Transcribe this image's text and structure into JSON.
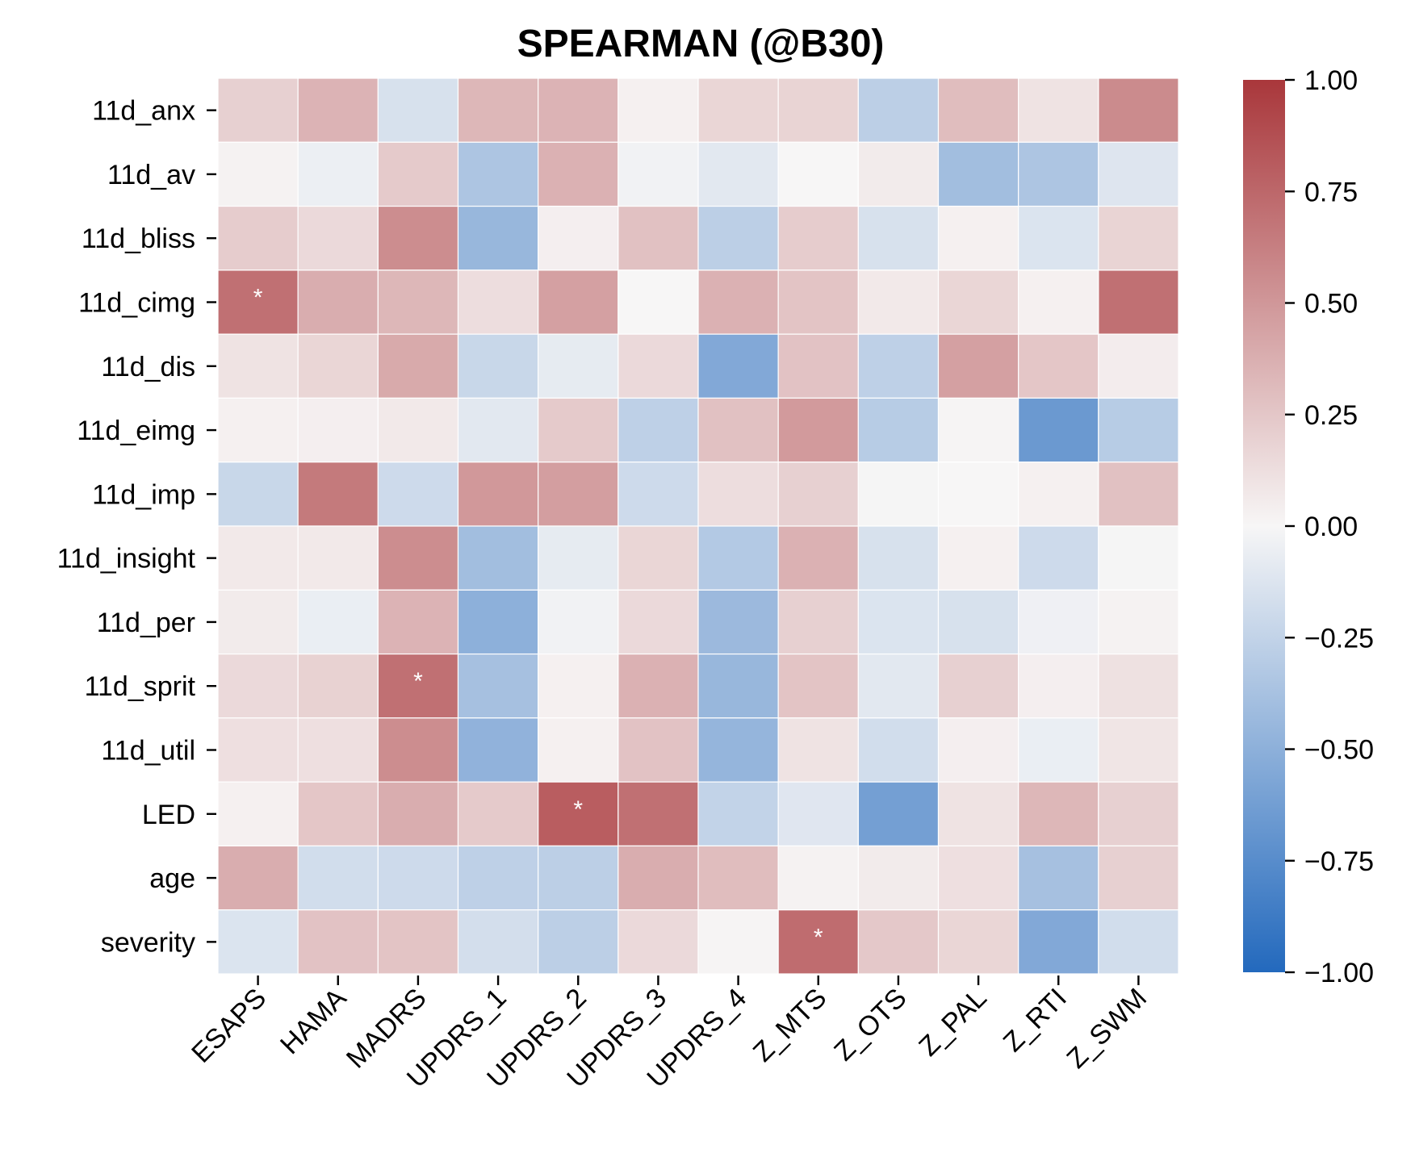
{
  "chart_data": {
    "type": "heatmap",
    "title": "SPEARMAN (@B30)",
    "rows": [
      "11d_anx",
      "11d_av",
      "11d_bliss",
      "11d_cimg",
      "11d_dis",
      "11d_eimg",
      "11d_imp",
      "11d_insight",
      "11d_per",
      "11d_sprit",
      "11d_util",
      "LED",
      "age",
      "severity"
    ],
    "columns": [
      "ESAPS",
      "HAMA",
      "MADRS",
      "UPDRS_1",
      "UPDRS_2",
      "UPDRS_3",
      "UPDRS_4",
      "Z_MTS",
      "Z_OTS",
      "Z_PAL",
      "Z_RTI",
      "Z_SWM"
    ],
    "values": [
      [
        0.2,
        0.35,
        -0.15,
        0.33,
        0.35,
        0.03,
        0.17,
        0.18,
        -0.28,
        0.3,
        0.1,
        0.56
      ],
      [
        0.02,
        -0.05,
        0.23,
        -0.35,
        0.36,
        -0.03,
        -0.1,
        0.0,
        0.06,
        -0.4,
        -0.35,
        -0.12
      ],
      [
        0.22,
        0.15,
        0.55,
        -0.45,
        0.04,
        0.28,
        -0.28,
        0.22,
        -0.15,
        0.03,
        -0.13,
        0.18
      ],
      [
        0.7,
        0.38,
        0.33,
        0.13,
        0.45,
        0.0,
        0.36,
        0.26,
        0.07,
        0.17,
        0.03,
        0.7
      ],
      [
        0.1,
        0.17,
        0.4,
        -0.22,
        -0.08,
        0.15,
        -0.55,
        0.27,
        -0.27,
        0.45,
        0.25,
        0.05
      ],
      [
        0.03,
        0.04,
        0.07,
        -0.1,
        0.23,
        -0.27,
        0.28,
        0.48,
        -0.3,
        0.01,
        -0.66,
        -0.3
      ],
      [
        -0.22,
        0.65,
        -0.2,
        0.49,
        0.46,
        -0.2,
        0.13,
        0.2,
        -0.01,
        0.0,
        0.03,
        0.28
      ],
      [
        0.07,
        0.07,
        0.55,
        -0.4,
        -0.08,
        0.17,
        -0.32,
        0.36,
        -0.15,
        0.03,
        -0.2,
        -0.01
      ],
      [
        0.06,
        -0.06,
        0.35,
        -0.5,
        -0.03,
        0.15,
        -0.43,
        0.2,
        -0.13,
        -0.15,
        -0.04,
        0.02
      ],
      [
        0.15,
        0.19,
        0.7,
        -0.38,
        0.03,
        0.36,
        -0.45,
        0.26,
        -0.1,
        0.2,
        0.04,
        0.11
      ],
      [
        0.12,
        0.12,
        0.55,
        -0.48,
        0.03,
        0.27,
        -0.46,
        0.1,
        -0.18,
        0.04,
        -0.06,
        0.09
      ],
      [
        0.03,
        0.25,
        0.38,
        0.23,
        0.8,
        0.7,
        -0.25,
        -0.11,
        -0.62,
        0.1,
        0.33,
        0.2
      ],
      [
        0.38,
        -0.18,
        -0.2,
        -0.27,
        -0.28,
        0.38,
        0.3,
        0.02,
        0.06,
        0.12,
        -0.38,
        0.2
      ],
      [
        -0.13,
        0.27,
        0.26,
        -0.17,
        -0.28,
        0.15,
        0.01,
        0.72,
        0.24,
        0.17,
        -0.55,
        -0.18
      ]
    ],
    "significant": [
      [
        3,
        0
      ],
      [
        9,
        2
      ],
      [
        11,
        4
      ],
      [
        13,
        7
      ]
    ],
    "significance_marker": "*",
    "colorbar": {
      "min": -1.0,
      "max": 1.0,
      "ticks": [
        "1.00",
        "0.75",
        "0.50",
        "0.25",
        "0.00",
        "−0.25",
        "−0.50",
        "−0.75",
        "−1.00"
      ],
      "tick_values": [
        1.0,
        0.75,
        0.5,
        0.25,
        0.0,
        -0.25,
        -0.5,
        -0.75,
        -1.0
      ]
    },
    "colormap": {
      "name": "vlag",
      "negative_end": "#2369bd",
      "mid": "#f7f6f6",
      "positive_end": "#a9373b"
    },
    "xlabel": "",
    "ylabel": ""
  }
}
